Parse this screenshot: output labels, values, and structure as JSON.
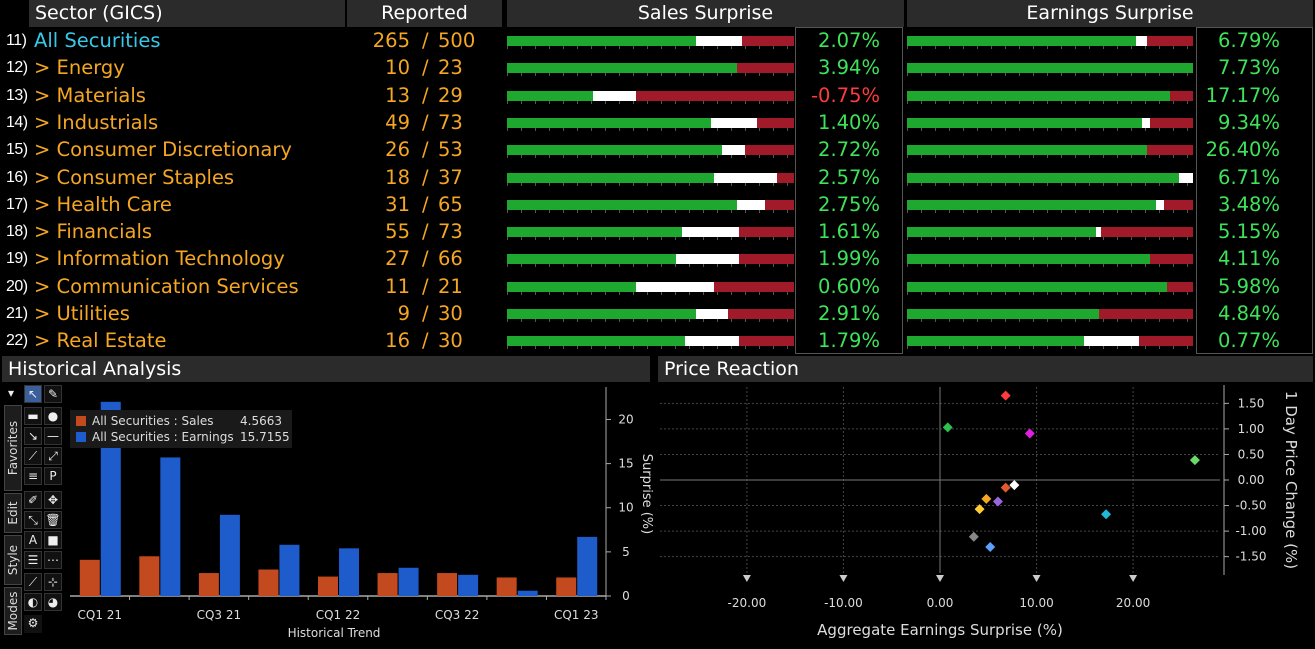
{
  "headers": {
    "sector": "Sector (GICS)",
    "reported": "Reported",
    "sales": "Sales Surprise",
    "earnings": "Earnings Surprise"
  },
  "rows": [
    {
      "num": "11)",
      "name": "All Securities",
      "a": "265",
      "b": "500",
      "sales": "2.07%",
      "earn": "6.79%",
      "sales_bar": [
        0.66,
        0.16
      ],
      "earn_bar": [
        0.8,
        0.04
      ]
    },
    {
      "num": "12)",
      "name": "> Energy",
      "a": "10",
      "b": "23",
      "sales": "3.94%",
      "earn": "7.73%",
      "sales_bar": [
        0.8,
        0.0
      ],
      "earn_bar": [
        1.0,
        0.0
      ]
    },
    {
      "num": "13)",
      "name": "> Materials",
      "a": "13",
      "b": "29",
      "sales": "-0.75%",
      "earn": "17.17%",
      "sales_bar": [
        0.3,
        0.15
      ],
      "earn_bar": [
        0.92,
        0.0
      ]
    },
    {
      "num": "14)",
      "name": "> Industrials",
      "a": "49",
      "b": "73",
      "sales": "1.40%",
      "earn": "9.34%",
      "sales_bar": [
        0.71,
        0.16
      ],
      "earn_bar": [
        0.82,
        0.03
      ]
    },
    {
      "num": "15)",
      "name": "> Consumer Discretionary",
      "a": "26",
      "b": "53",
      "sales": "2.72%",
      "earn": "26.40%",
      "sales_bar": [
        0.75,
        0.08
      ],
      "earn_bar": [
        0.84,
        0.0
      ]
    },
    {
      "num": "16)",
      "name": "> Consumer Staples",
      "a": "18",
      "b": "37",
      "sales": "2.57%",
      "earn": "6.71%",
      "sales_bar": [
        0.72,
        0.22
      ],
      "earn_bar": [
        0.95,
        0.05
      ]
    },
    {
      "num": "17)",
      "name": "> Health Care",
      "a": "31",
      "b": "65",
      "sales": "2.75%",
      "earn": "3.48%",
      "sales_bar": [
        0.8,
        0.1
      ],
      "earn_bar": [
        0.87,
        0.03
      ]
    },
    {
      "num": "18)",
      "name": "> Financials",
      "a": "55",
      "b": "73",
      "sales": "1.61%",
      "earn": "5.15%",
      "sales_bar": [
        0.61,
        0.2
      ],
      "earn_bar": [
        0.66,
        0.02
      ]
    },
    {
      "num": "19)",
      "name": "> Information Technology",
      "a": "27",
      "b": "66",
      "sales": "1.99%",
      "earn": "4.11%",
      "sales_bar": [
        0.59,
        0.22
      ],
      "earn_bar": [
        0.85,
        0.0
      ]
    },
    {
      "num": "20)",
      "name": "> Communication Services",
      "a": "11",
      "b": "21",
      "sales": "0.60%",
      "earn": "5.98%",
      "sales_bar": [
        0.45,
        0.27
      ],
      "earn_bar": [
        0.91,
        0.0
      ]
    },
    {
      "num": "21)",
      "name": "> Utilities",
      "a": "9",
      "b": "30",
      "sales": "2.91%",
      "earn": "4.84%",
      "sales_bar": [
        0.66,
        0.11
      ],
      "earn_bar": [
        0.67,
        0.0
      ]
    },
    {
      "num": "22)",
      "name": "> Real Estate",
      "a": "16",
      "b": "30",
      "sales": "1.79%",
      "earn": "0.77%",
      "sales_bar": [
        0.62,
        0.19
      ],
      "earn_bar": [
        0.62,
        0.19
      ]
    }
  ],
  "historical": {
    "title": "Historical Analysis",
    "xlabel": "Historical Trend",
    "ylabel": "Surprise (%)",
    "legend": [
      {
        "label": "All Securities : Sales",
        "value": "4.5663",
        "color": "#c24a1e"
      },
      {
        "label": "All Securities : Earnings",
        "value": "15.7155",
        "color": "#1e5ccc"
      }
    ],
    "toolbar_tabs": [
      "Favorites",
      "Edit",
      "Style",
      "Modes"
    ]
  },
  "price": {
    "title": "Price Reaction",
    "xlabel": "Aggregate Earnings Surprise (%)",
    "ylabel": "1 Day Price Change (%)"
  },
  "chart_data": [
    {
      "type": "bar",
      "categories": [
        "Q1 21",
        "Q2 21",
        "Q3 21",
        "Q4 21",
        "Q1 22",
        "Q2 22",
        "Q3 22",
        "Q4 22",
        "Q1 23"
      ],
      "tick_labels": [
        "CQ1 21",
        "CQ3 21",
        "CQ1 22",
        "CQ3 22",
        "CQ1 23"
      ],
      "series": [
        {
          "name": "All Securities : Sales",
          "values": [
            4.1,
            4.5,
            2.6,
            3.0,
            2.2,
            2.6,
            2.6,
            2.1,
            2.1
          ],
          "color": "#c24a1e"
        },
        {
          "name": "All Securities : Earnings",
          "values": [
            22.0,
            15.7,
            9.2,
            5.8,
            5.4,
            3.2,
            2.4,
            0.6,
            6.7
          ],
          "color": "#1e5ccc"
        }
      ],
      "ylabel": "Surprise (%)",
      "xlabel": "Historical Trend",
      "ylim": [
        0,
        23
      ],
      "yticks": [
        "0",
        "5",
        "10",
        "15",
        "20"
      ]
    },
    {
      "type": "scatter",
      "points": [
        {
          "x": 6.8,
          "y": 1.65,
          "color": "#ff3b3b"
        },
        {
          "x": 0.8,
          "y": 1.03,
          "color": "#2fbf4a"
        },
        {
          "x": 9.3,
          "y": 0.91,
          "color": "#e020e0"
        },
        {
          "x": 26.4,
          "y": 0.39,
          "color": "#66dd66"
        },
        {
          "x": 7.7,
          "y": -0.1,
          "color": "#ffffff"
        },
        {
          "x": 6.8,
          "y": -0.15,
          "color": "#e05a2a"
        },
        {
          "x": 4.8,
          "y": -0.37,
          "color": "#f5a623"
        },
        {
          "x": 6.0,
          "y": -0.42,
          "color": "#9966dd"
        },
        {
          "x": 4.1,
          "y": -0.57,
          "color": "#ffcc33"
        },
        {
          "x": 17.2,
          "y": -0.67,
          "color": "#20b8d8"
        },
        {
          "x": 3.5,
          "y": -1.11,
          "color": "#888888"
        },
        {
          "x": 5.2,
          "y": -1.31,
          "color": "#5aa0ff"
        }
      ],
      "xlabel": "Aggregate Earnings Surprise (%)",
      "ylabel": "1 Day Price Change (%)",
      "xlim": [
        -29,
        29
      ],
      "ylim": [
        -1.82,
        1.82
      ],
      "xticks": [
        "-20.00",
        "-10.00",
        "0.00",
        "10.00",
        "20.00"
      ],
      "yticks": [
        "1.50",
        "1.00",
        "0.50",
        "0.00",
        "-0.50",
        "-1.00",
        "-1.50"
      ]
    }
  ]
}
